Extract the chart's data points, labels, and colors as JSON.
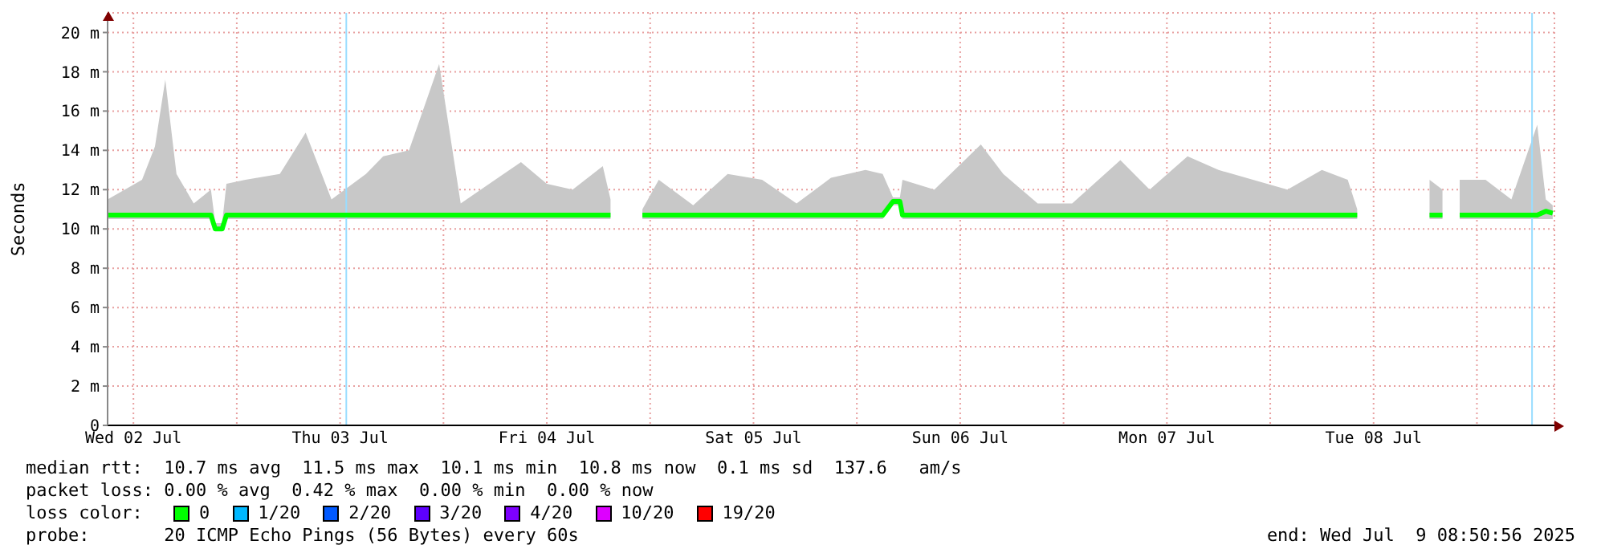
{
  "chart_data": {
    "type": "line",
    "ylabel": "Seconds",
    "x": [
      "2025-07-02T09:00",
      "2025-07-02T13:00",
      "2025-07-02T14:30",
      "2025-07-02T15:42",
      "2025-07-02T17:00",
      "2025-07-02T19:00",
      "2025-07-02T21:00",
      "2025-07-02T21:30",
      "2025-07-02T22:18",
      "2025-07-02T22:48",
      "2025-07-03T01:00",
      "2025-07-03T05:00",
      "2025-07-03T08:00",
      "2025-07-03T11:00",
      "2025-07-03T15:00",
      "2025-07-03T17:00",
      "2025-07-03T20:00",
      "2025-07-03T23:30",
      "2025-07-04T02:00",
      "2025-07-04T06:00",
      "2025-07-04T09:00",
      "2025-07-04T12:00",
      "2025-07-04T15:00",
      "2025-07-04T18:30",
      "2025-07-04T19:24",
      "2025-07-04T21:00",
      "2025-07-04T23:06",
      "2025-07-05T01:00",
      "2025-07-05T05:00",
      "2025-07-05T09:00",
      "2025-07-05T13:00",
      "2025-07-05T17:00",
      "2025-07-05T21:00",
      "2025-07-06T01:00",
      "2025-07-06T03:00",
      "2025-07-06T04:12",
      "2025-07-06T05:00",
      "2025-07-06T05:18",
      "2025-07-06T09:00",
      "2025-07-06T14:24",
      "2025-07-06T17:00",
      "2025-07-06T21:00",
      "2025-07-07T01:00",
      "2025-07-07T06:36",
      "2025-07-07T10:00",
      "2025-07-07T14:24",
      "2025-07-07T18:00",
      "2025-07-07T22:00",
      "2025-07-08T02:00",
      "2025-07-08T06:00",
      "2025-07-08T09:00",
      "2025-07-08T10:06",
      "2025-07-08T13:00",
      "2025-07-08T18:30",
      "2025-07-08T20:00",
      "2025-07-08T21:18",
      "2025-07-08T22:00",
      "2025-07-09T01:00",
      "2025-07-09T04:00",
      "2025-07-09T07:00",
      "2025-07-09T08:00",
      "2025-07-09T08:48"
    ],
    "series": [
      {
        "color": "#00ff00",
        "values": [
          10.7,
          10.7,
          10.7,
          10.7,
          10.7,
          10.7,
          10.7,
          10.0,
          10.0,
          10.7,
          10.7,
          10.7,
          10.7,
          10.7,
          10.7,
          10.7,
          10.7,
          10.7,
          10.7,
          10.7,
          10.7,
          10.7,
          10.7,
          10.7,
          10.7,
          null,
          10.7,
          10.7,
          10.7,
          10.7,
          10.7,
          10.7,
          10.7,
          10.7,
          10.7,
          11.4,
          11.4,
          10.7,
          10.7,
          10.7,
          10.7,
          10.7,
          10.7,
          10.7,
          10.7,
          10.7,
          10.7,
          10.7,
          10.7,
          10.7,
          10.7,
          10.7,
          null,
          10.7,
          10.7,
          null,
          10.7,
          10.7,
          10.7,
          10.7,
          10.9,
          10.8
        ],
        "lower": [
          10.5,
          10.5,
          10.5,
          10.5,
          10.5,
          10.5,
          10.5,
          9.9,
          9.9,
          10.5,
          10.5,
          10.5,
          10.5,
          10.5,
          10.5,
          10.5,
          10.5,
          10.5,
          10.5,
          10.5,
          10.5,
          10.5,
          10.5,
          10.5,
          10.5,
          null,
          10.5,
          10.5,
          10.5,
          10.5,
          10.5,
          10.5,
          10.5,
          10.5,
          10.5,
          11.2,
          11.2,
          10.5,
          10.5,
          10.5,
          10.5,
          10.5,
          10.5,
          10.5,
          10.5,
          10.5,
          10.5,
          10.5,
          10.5,
          10.5,
          10.5,
          10.5,
          null,
          10.5,
          10.5,
          null,
          10.5,
          10.5,
          10.5,
          10.5,
          10.5,
          10.5
        ],
        "upper": [
          11.5,
          12.5,
          14.2,
          17.6,
          12.8,
          11.3,
          12.0,
          10.3,
          10.3,
          12.3,
          12.5,
          12.8,
          14.9,
          11.5,
          12.8,
          13.7,
          14.0,
          18.4,
          11.3,
          12.5,
          13.4,
          12.3,
          12.0,
          13.2,
          11.5,
          null,
          11.0,
          12.5,
          11.2,
          12.8,
          12.5,
          11.3,
          12.6,
          13.0,
          12.8,
          11.6,
          11.6,
          12.5,
          12.0,
          14.3,
          12.8,
          11.3,
          11.3,
          13.5,
          12.0,
          13.7,
          13.0,
          12.5,
          12.0,
          13.0,
          12.5,
          11.0,
          null,
          12.5,
          12.0,
          null,
          12.5,
          12.5,
          11.5,
          15.3,
          11.5,
          11.2
        ]
      }
    ],
    "xlim": [
      "2025-07-02T09:00",
      "2025-07-09T09:00"
    ],
    "xticks": [
      {
        "value": "2025-07-02T12:00",
        "label": "Wed 02 Jul"
      },
      {
        "value": "2025-07-03T00:00",
        "label": null
      },
      {
        "value": "2025-07-03T12:00",
        "label": "Thu 03 Jul"
      },
      {
        "value": "2025-07-04T00:00",
        "label": null
      },
      {
        "value": "2025-07-04T12:00",
        "label": "Fri 04 Jul"
      },
      {
        "value": "2025-07-05T00:00",
        "label": null
      },
      {
        "value": "2025-07-05T12:00",
        "label": "Sat 05 Jul"
      },
      {
        "value": "2025-07-06T00:00",
        "label": null
      },
      {
        "value": "2025-07-06T12:00",
        "label": "Sun 06 Jul"
      },
      {
        "value": "2025-07-07T00:00",
        "label": null
      },
      {
        "value": "2025-07-07T12:00",
        "label": "Mon 07 Jul"
      },
      {
        "value": "2025-07-08T00:00",
        "label": null
      },
      {
        "value": "2025-07-08T12:00",
        "label": "Tue 08 Jul"
      },
      {
        "value": "2025-07-09T00:00",
        "label": null
      }
    ],
    "ylim": [
      0,
      21
    ],
    "yticks": [
      0,
      {
        "value": 2,
        "label": "2 m"
      },
      {
        "value": 4,
        "label": "4 m"
      },
      {
        "value": 6,
        "label": "6 m"
      },
      {
        "value": 8,
        "label": "8 m"
      },
      {
        "value": 10,
        "label": "10 m"
      },
      {
        "value": 12,
        "label": "12 m"
      },
      {
        "value": 14,
        "label": "14 m"
      },
      {
        "value": 16,
        "label": "16 m"
      },
      {
        "value": 18,
        "label": "18 m"
      },
      {
        "value": 20,
        "label": "20 m"
      }
    ],
    "grid": true,
    "ref_lines": [
      {
        "axis": "x",
        "value": "2025-07-03T12:43",
        "color": "#99ddff"
      },
      {
        "axis": "x",
        "value": "2025-07-09T06:24",
        "color": "#99ddff"
      }
    ],
    "annotations": [
      "median rtt:  10.7 ms avg  11.5 ms max  10.1 ms min  10.8 ms now  0.1 ms sd  137.6   am/s",
      "packet loss: 0.00 % avg  0.42 % max  0.00 % min  0.00 % now",
      "loss color:",
      "0",
      "1/20",
      "2/20",
      "3/20",
      "4/20",
      "10/20",
      "19/20",
      "probe:       20 ICMP Echo Pings (56 Bytes) every 60s",
      "end: Wed Jul  9 08:50:56 2025"
    ]
  }
}
